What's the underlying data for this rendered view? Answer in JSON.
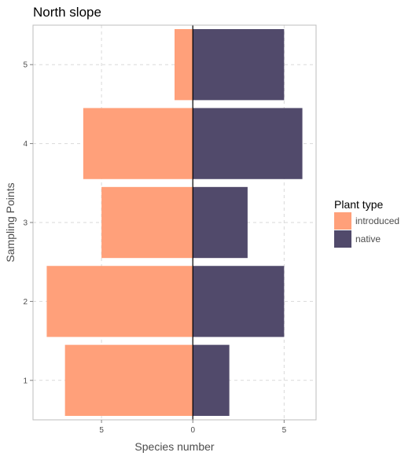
{
  "chart_data": {
    "type": "bar",
    "orientation": "horizontal-diverging",
    "title": "North slope",
    "xlabel": "Species number",
    "ylabel": "Sampling Points",
    "categories": [
      "1",
      "2",
      "3",
      "4",
      "5"
    ],
    "series": [
      {
        "name": "introduced",
        "values": [
          -7,
          -8,
          -5,
          -6,
          -1
        ],
        "color": "#FFA07A"
      },
      {
        "name": "native",
        "values": [
          2,
          5,
          3,
          6,
          5
        ],
        "color": "#514A6B"
      }
    ],
    "xlim": [
      -8.75,
      6.75
    ],
    "x_ticks": [
      -5,
      0,
      5
    ],
    "x_tick_labels": [
      "5",
      "0",
      "5"
    ],
    "grid": true,
    "legend": {
      "title": "Plant type",
      "position": "right"
    }
  }
}
